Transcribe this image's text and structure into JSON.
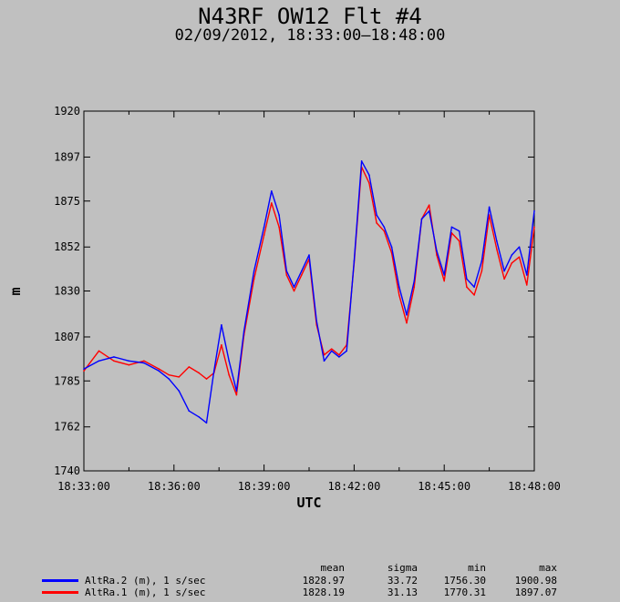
{
  "title": "N43RF OW12 Flt #4",
  "subtitle": "02/09/2012, 18:33:00–18:48:00",
  "colors": {
    "background": "#c0c0c0",
    "series1": "#0000ff",
    "series2": "#ff0000"
  },
  "chart_data": {
    "type": "line",
    "xlabel": "UTC",
    "ylabel": "m",
    "xlim": [
      "18:33:00",
      "18:48:00"
    ],
    "ylim": [
      1740,
      1920
    ],
    "x_ticks": [
      "18:33:00",
      "18:36:00",
      "18:39:00",
      "18:42:00",
      "18:45:00",
      "18:48:00"
    ],
    "y_ticks": [
      "1740",
      "1762",
      "1785",
      "1807",
      "1830",
      "1852",
      "1875",
      "1897",
      "1920"
    ],
    "grid": false,
    "series": [
      {
        "name": "AltRa.2 (m), 1 s/sec",
        "color": "#0000ff",
        "x": [
          "18:33:00",
          "18:33:30",
          "18:34:00",
          "18:34:30",
          "18:35:00",
          "18:35:30",
          "18:35:50",
          "18:36:10",
          "18:36:30",
          "18:36:50",
          "18:37:05",
          "18:37:20",
          "18:37:35",
          "18:37:50",
          "18:38:05",
          "18:38:20",
          "18:38:40",
          "18:39:00",
          "18:39:15",
          "18:39:30",
          "18:39:45",
          "18:40:00",
          "18:40:15",
          "18:40:30",
          "18:40:45",
          "18:41:00",
          "18:41:15",
          "18:41:30",
          "18:41:45",
          "18:42:00",
          "18:42:15",
          "18:42:30",
          "18:42:45",
          "18:43:00",
          "18:43:15",
          "18:43:30",
          "18:43:45",
          "18:44:00",
          "18:44:15",
          "18:44:30",
          "18:44:45",
          "18:45:00",
          "18:45:15",
          "18:45:30",
          "18:45:45",
          "18:46:00",
          "18:46:15",
          "18:46:30",
          "18:46:45",
          "18:47:00",
          "18:47:15",
          "18:47:30",
          "18:47:45",
          "18:48:00"
        ],
        "values": [
          1791,
          1795,
          1797,
          1795,
          1794,
          1790,
          1786,
          1780,
          1770,
          1767,
          1764,
          1790,
          1813,
          1795,
          1780,
          1810,
          1840,
          1862,
          1880,
          1868,
          1840,
          1832,
          1840,
          1848,
          1815,
          1795,
          1800,
          1797,
          1800,
          1845,
          1895,
          1888,
          1868,
          1862,
          1852,
          1832,
          1818,
          1835,
          1866,
          1870,
          1850,
          1838,
          1862,
          1860,
          1836,
          1832,
          1845,
          1872,
          1855,
          1840,
          1848,
          1852,
          1838,
          1870
        ]
      },
      {
        "name": "AltRa.1 (m), 1 s/sec",
        "color": "#ff0000",
        "x": [
          "18:33:00",
          "18:33:30",
          "18:34:00",
          "18:34:30",
          "18:35:00",
          "18:35:30",
          "18:35:50",
          "18:36:10",
          "18:36:30",
          "18:36:50",
          "18:37:05",
          "18:37:20",
          "18:37:35",
          "18:37:50",
          "18:38:05",
          "18:38:20",
          "18:38:40",
          "18:39:00",
          "18:39:15",
          "18:39:30",
          "18:39:45",
          "18:40:00",
          "18:40:15",
          "18:40:30",
          "18:40:45",
          "18:41:00",
          "18:41:15",
          "18:41:30",
          "18:41:45",
          "18:42:00",
          "18:42:15",
          "18:42:30",
          "18:42:45",
          "18:43:00",
          "18:43:15",
          "18:43:30",
          "18:43:45",
          "18:44:00",
          "18:44:15",
          "18:44:30",
          "18:44:45",
          "18:45:00",
          "18:45:15",
          "18:45:30",
          "18:45:45",
          "18:46:00",
          "18:46:15",
          "18:46:30",
          "18:46:45",
          "18:47:00",
          "18:47:15",
          "18:47:30",
          "18:47:45",
          "18:48:00"
        ],
        "values": [
          1790,
          1800,
          1795,
          1793,
          1795,
          1791,
          1788,
          1787,
          1792,
          1789,
          1786,
          1789,
          1803,
          1788,
          1778,
          1808,
          1836,
          1858,
          1874,
          1862,
          1838,
          1830,
          1838,
          1846,
          1813,
          1798,
          1801,
          1798,
          1803,
          1844,
          1892,
          1884,
          1864,
          1860,
          1849,
          1828,
          1814,
          1832,
          1866,
          1873,
          1848,
          1835,
          1859,
          1855,
          1832,
          1828,
          1840,
          1868,
          1851,
          1836,
          1844,
          1847,
          1833,
          1862
        ]
      }
    ]
  },
  "legend": {
    "headers": {
      "mean": "mean",
      "sigma": "sigma",
      "min": "min",
      "max": "max"
    },
    "rows": [
      {
        "label": "AltRa.2 (m), 1 s/sec",
        "color": "#0000ff",
        "mean": "1828.97",
        "sigma": "33.72",
        "min": "1756.30",
        "max": "1900.98"
      },
      {
        "label": "AltRa.1 (m), 1 s/sec",
        "color": "#ff0000",
        "mean": "1828.19",
        "sigma": "31.13",
        "min": "1770.31",
        "max": "1897.07"
      }
    ]
  }
}
